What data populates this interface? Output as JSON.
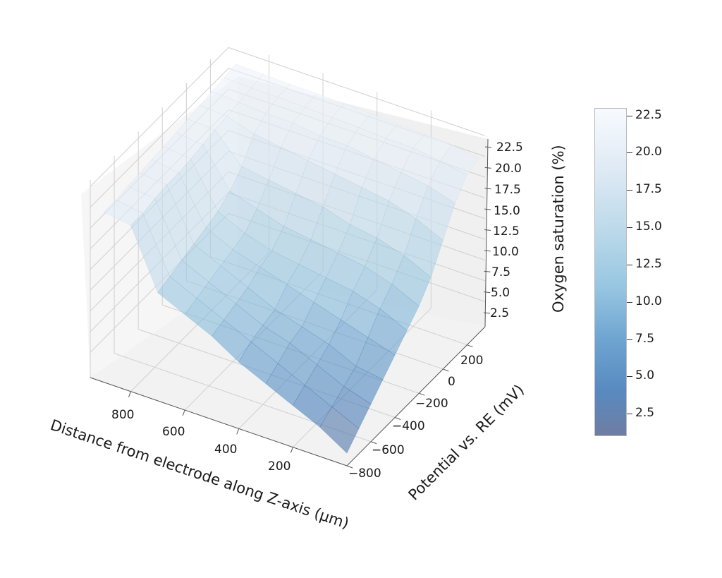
{
  "chart_data": {
    "type": "surface3d",
    "title": "",
    "xlabel": "Distance from electrode along Z-axis (µm)",
    "ylabel": "Potential vs. RE (mV)",
    "zlabel": "Oxygen saturation (%)",
    "colorbar_label": "Oxygen saturation (%)",
    "colormap": "Blues_r",
    "alpha": 0.6,
    "x_ticks": [
      200,
      400,
      600,
      800
    ],
    "y_ticks": [
      -800,
      -600,
      -400,
      -200,
      0,
      200
    ],
    "z_ticks": [
      2.5,
      5.0,
      7.5,
      10.0,
      12.5,
      15.0,
      17.5,
      20.0,
      22.5
    ],
    "colorbar_ticks": [
      2.5,
      5.0,
      7.5,
      10.0,
      12.5,
      15.0,
      17.5,
      20.0,
      22.5
    ],
    "xlim": [
      0,
      950
    ],
    "ylim": [
      -800,
      350
    ],
    "zlim": [
      1.0,
      23.0
    ],
    "x": [
      0,
      100,
      200,
      300,
      400,
      500,
      600,
      700,
      800,
      900
    ],
    "y": [
      -800,
      -700,
      -600,
      -500,
      -400,
      -300,
      -200,
      -100,
      0,
      100,
      200,
      300
    ],
    "z_grid_by_potential": [
      [
        1.0,
        3.0,
        4.5,
        6.0,
        7.5,
        9.5,
        11.0,
        12.5,
        19.5,
        20.0
      ],
      [
        2.5,
        4.0,
        5.5,
        7.0,
        8.5,
        10.0,
        11.5,
        13.0,
        19.5,
        20.0
      ],
      [
        4.0,
        5.0,
        6.5,
        8.0,
        9.0,
        10.5,
        12.0,
        13.5,
        19.8,
        20.2
      ],
      [
        5.5,
        6.0,
        7.5,
        8.5,
        9.5,
        11.0,
        12.5,
        14.0,
        20.0,
        20.3
      ],
      [
        7.0,
        8.0,
        9.0,
        10.0,
        11.0,
        12.0,
        13.0,
        14.5,
        20.0,
        20.5
      ],
      [
        8.5,
        10.0,
        11.0,
        11.5,
        12.0,
        12.5,
        13.5,
        15.0,
        20.2,
        20.6
      ],
      [
        10.0,
        11.5,
        12.5,
        13.0,
        13.5,
        14.0,
        15.0,
        16.0,
        20.5,
        20.8
      ],
      [
        12.0,
        13.5,
        14.5,
        15.0,
        16.0,
        16.5,
        17.0,
        17.5,
        20.8,
        21.0
      ],
      [
        15.0,
        16.5,
        17.5,
        18.0,
        18.5,
        19.0,
        19.5,
        20.0,
        21.0,
        21.2
      ],
      [
        18.0,
        19.0,
        19.5,
        20.0,
        20.5,
        20.5,
        21.0,
        21.0,
        21.2,
        21.4
      ],
      [
        20.0,
        20.5,
        21.0,
        21.0,
        21.2,
        21.3,
        21.4,
        21.5,
        21.5,
        21.6
      ],
      [
        20.5,
        21.0,
        21.2,
        21.3,
        21.4,
        21.5,
        21.6,
        21.6,
        21.7,
        21.8
      ]
    ],
    "grid": true
  },
  "labels": {
    "zlabel": "Oxygen saturation (%)",
    "xlabel": "Distance from electrode along Z-axis (µm)",
    "ylabel": "Potential vs. RE (mV)",
    "x_tick_labels": [
      "800",
      "600",
      "400",
      "200"
    ],
    "y_tick_labels": [
      "−800",
      "−600",
      "−400",
      "−200",
      "0",
      "200"
    ],
    "z_tick_labels": [
      "22.5",
      "20.0",
      "17.5",
      "15.0",
      "12.5",
      "10.0",
      "7.5",
      "5.0",
      "2.5"
    ],
    "cb_tick_labels": [
      "22.5",
      "20.0",
      "17.5",
      "15.0",
      "12.5",
      "10.0",
      "7.5",
      "5.0",
      "2.5"
    ]
  },
  "colors": {
    "pane_back": "#f0f0f0",
    "pane_left": "#f6f6f6",
    "pane_floor": "#f2f2f2",
    "grid": "#cfcfcf",
    "axis_line": "#555555",
    "cmap_low": "#5f6f98",
    "cmap_mid_low": "#4a7fb8",
    "cmap_mid": "#8fc0de",
    "cmap_high": "#f4f8fc"
  }
}
